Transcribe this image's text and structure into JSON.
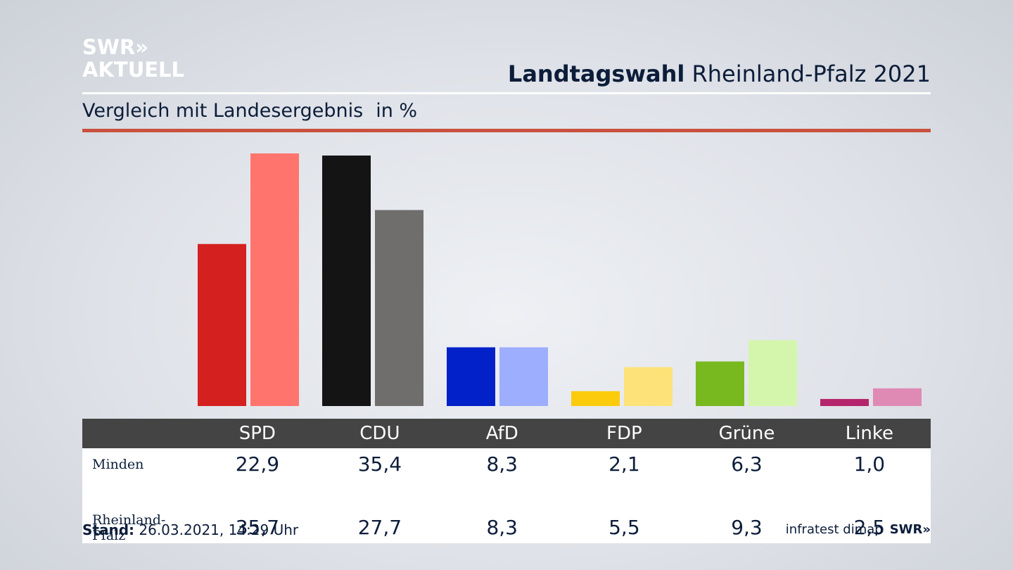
{
  "logo": {
    "line1": "SWR",
    "arrows": "»",
    "line2": "AKTUELL"
  },
  "header": {
    "title_bold": "Landtagswahl",
    "title_rest": "Rheinland-Pfalz 2021"
  },
  "subtitle": {
    "text": "Vergleich mit Landesergebnis",
    "unit": "in %"
  },
  "table": {
    "rows": [
      {
        "label": "Minden",
        "values": [
          "22,9",
          "35,4",
          "8,3",
          "2,1",
          "6,3",
          "1,0"
        ]
      },
      {
        "label": "Rheinland-Pfalz",
        "values": [
          "35,7",
          "27,7",
          "8,3",
          "5,5",
          "9,3",
          "2,5"
        ]
      }
    ]
  },
  "footer": {
    "stand_label": "Stand:",
    "stand_value": "26.03.2021, 14:29 Uhr",
    "source": "infratest dimap",
    "brand": "SWR»"
  },
  "chart_data": {
    "type": "bar",
    "title": "Landtagswahl Rheinland-Pfalz 2021",
    "subtitle": "Vergleich mit Landesergebnis",
    "ylabel": "in %",
    "categories": [
      "SPD",
      "CDU",
      "AfD",
      "FDP",
      "Grüne",
      "Linke"
    ],
    "ylim": [
      0,
      36
    ],
    "grid": false,
    "series": [
      {
        "name": "Minden",
        "values": [
          22.9,
          35.4,
          8.3,
          2.1,
          6.3,
          1.0
        ],
        "colors": [
          "#d52020",
          "#141414",
          "#0321c9",
          "#fccb0c",
          "#77b91f",
          "#b5256b"
        ]
      },
      {
        "name": "Rheinland-Pfalz",
        "values": [
          35.7,
          27.7,
          8.3,
          5.5,
          9.3,
          2.5
        ],
        "colors": [
          "#ff756e",
          "#706e6c",
          "#9eaefe",
          "#fde27a",
          "#d4f6ac",
          "#df8ab5"
        ]
      }
    ]
  }
}
